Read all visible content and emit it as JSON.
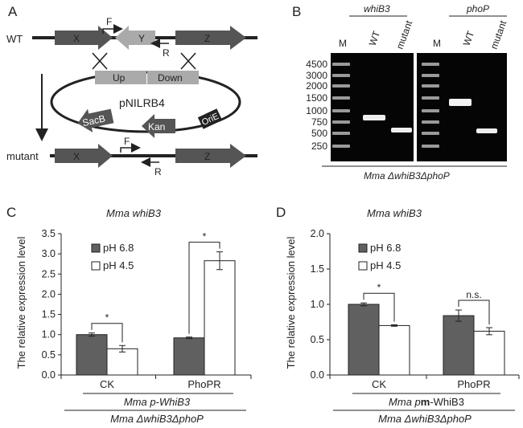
{
  "panels": {
    "A": {
      "letter": "A",
      "wt_label": "WT",
      "mutant_label": "mutant",
      "genes": {
        "x": "X",
        "y": "Y",
        "z": "Z"
      },
      "primers": {
        "f": "F",
        "r": "R"
      },
      "plasmid": {
        "name": "pNILRB4",
        "up": "Up",
        "down": "Down",
        "sacb": "SacB",
        "kan": "Kan",
        "orie": "OriE"
      }
    },
    "B": {
      "letter": "B",
      "group1": "whiB3",
      "group2": "phoP",
      "lanes": [
        "M",
        "WT",
        "mutant",
        "M",
        "WT",
        "mutant"
      ],
      "ladder": [
        "4500",
        "3000",
        "2000",
        "1500",
        "1000",
        "750",
        "500",
        "250"
      ],
      "strain": "Mma ΔwhiB3ΔphoP"
    },
    "C": {
      "letter": "C",
      "ylabel": "The relative expression level",
      "groups": [
        "CK",
        "PhoPR"
      ],
      "construct": "Mma p-WhiB3",
      "strain": "Mma ΔwhiB3ΔphoP",
      "sig": [
        "*",
        "*"
      ]
    },
    "D": {
      "letter": "D",
      "ylabel": "The relative expression level",
      "groups": [
        "CK",
        "PhoPR"
      ],
      "construct_pre": "Mma p",
      "construct_bold": "m",
      "construct_post": "-WhiB3",
      "strain": "Mma ΔwhiB3ΔphoP",
      "sig": [
        "*",
        "n.s."
      ]
    }
  },
  "colors": {
    "dark_bar": "#606060",
    "light_bar": "#ffffff",
    "arrow_dark": "#555555",
    "arrow_light": "#aaaaaa"
  },
  "chart_data": [
    {
      "type": "bar",
      "title": "Mma whiB3",
      "ylabel": "The relative expression level",
      "categories": [
        "CK",
        "PhoPR"
      ],
      "ylim": [
        0,
        3.5
      ],
      "yticks": [
        "0.0",
        "0.5",
        "1.0",
        "1.5",
        "2.0",
        "2.5",
        "3.0",
        "3.5"
      ],
      "legend": "top-left",
      "series": [
        {
          "name": "pH 6.8",
          "values": [
            1.0,
            0.92
          ],
          "errors": [
            0.04,
            0.02
          ]
        },
        {
          "name": "pH 4.5",
          "values": [
            0.65,
            2.83
          ],
          "errors": [
            0.08,
            0.22
          ]
        }
      ]
    },
    {
      "type": "bar",
      "title": "Mma whiB3",
      "ylabel": "The relative expression level",
      "categories": [
        "CK",
        "PhoPR"
      ],
      "ylim": [
        0,
        2.0
      ],
      "yticks": [
        "0.0",
        "0.5",
        "1.0",
        "1.5",
        "2.0"
      ],
      "legend": "top-left",
      "series": [
        {
          "name": "pH 6.8",
          "values": [
            1.0,
            0.84
          ],
          "errors": [
            0.02,
            0.08
          ]
        },
        {
          "name": "pH 4.5",
          "values": [
            0.7,
            0.62
          ],
          "errors": [
            0.01,
            0.05
          ]
        }
      ]
    }
  ]
}
